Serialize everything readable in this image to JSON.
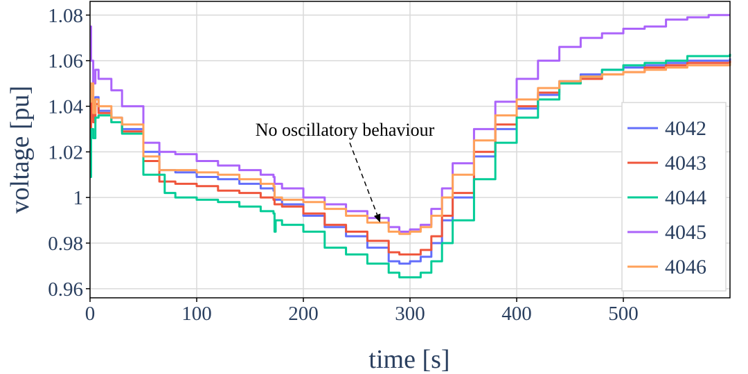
{
  "chart_data": {
    "type": "line",
    "title": "",
    "xlabel": "time [s]",
    "ylabel": "voltage [pu]",
    "xlim": [
      0,
      600
    ],
    "ylim": [
      0.956,
      1.086
    ],
    "x_ticks": [
      0,
      100,
      200,
      300,
      400,
      500
    ],
    "x_tick_labels": [
      "0",
      "100",
      "200",
      "300",
      "400",
      "500"
    ],
    "y_ticks": [
      0.96,
      0.98,
      1.0,
      1.02,
      1.04,
      1.06,
      1.08
    ],
    "y_tick_labels": [
      "0.96",
      "0.98",
      "1",
      "1.02",
      "1.04",
      "1.06",
      "1.08"
    ],
    "grid": true,
    "legend_position": "right",
    "annotation": {
      "text": "No oscillatory behaviour",
      "target": {
        "x": 272,
        "y": 0.989
      }
    },
    "series": [
      {
        "name": "4042",
        "color": "#636efa",
        "points": [
          [
            0,
            1.01
          ],
          [
            1,
            1.05
          ],
          [
            3,
            1.035
          ],
          [
            5,
            1.044
          ],
          [
            8,
            1.038
          ],
          [
            20,
            1.035
          ],
          [
            30,
            1.03
          ],
          [
            50,
            1.02
          ],
          [
            65,
            1.012
          ],
          [
            80,
            1.011
          ],
          [
            100,
            1.009
          ],
          [
            120,
            1.008
          ],
          [
            140,
            1.006
          ],
          [
            160,
            1.004
          ],
          [
            172,
            1.003
          ],
          [
            173,
            0.999
          ],
          [
            180,
            0.997
          ],
          [
            200,
            0.992
          ],
          [
            220,
            0.987
          ],
          [
            240,
            0.983
          ],
          [
            260,
            0.978
          ],
          [
            280,
            0.972
          ],
          [
            290,
            0.971
          ],
          [
            300,
            0.972
          ],
          [
            310,
            0.974
          ],
          [
            320,
            0.98
          ],
          [
            330,
            0.99
          ],
          [
            340,
            1.0
          ],
          [
            360,
            1.018
          ],
          [
            380,
            1.03
          ],
          [
            400,
            1.039
          ],
          [
            420,
            1.045
          ],
          [
            440,
            1.051
          ],
          [
            460,
            1.054
          ],
          [
            480,
            1.056
          ],
          [
            500,
            1.057
          ],
          [
            520,
            1.058
          ],
          [
            540,
            1.059
          ],
          [
            560,
            1.06
          ],
          [
            580,
            1.06
          ],
          [
            600,
            1.061
          ]
        ]
      },
      {
        "name": "4043",
        "color": "#ef553b",
        "points": [
          [
            0,
            1.02
          ],
          [
            1,
            1.043
          ],
          [
            3,
            1.033
          ],
          [
            5,
            1.041
          ],
          [
            8,
            1.037
          ],
          [
            20,
            1.033
          ],
          [
            30,
            1.029
          ],
          [
            50,
            1.016
          ],
          [
            65,
            1.007
          ],
          [
            80,
            1.006
          ],
          [
            100,
            1.005
          ],
          [
            120,
            1.003
          ],
          [
            140,
            1.002
          ],
          [
            160,
            1.0
          ],
          [
            172,
            0.999
          ],
          [
            173,
            0.997
          ],
          [
            180,
            0.996
          ],
          [
            200,
            0.993
          ],
          [
            220,
            0.988
          ],
          [
            240,
            0.985
          ],
          [
            260,
            0.981
          ],
          [
            280,
            0.976
          ],
          [
            290,
            0.975
          ],
          [
            300,
            0.975
          ],
          [
            310,
            0.977
          ],
          [
            320,
            0.983
          ],
          [
            330,
            0.992
          ],
          [
            340,
            1.002
          ],
          [
            360,
            1.02
          ],
          [
            380,
            1.032
          ],
          [
            400,
            1.04
          ],
          [
            420,
            1.046
          ],
          [
            440,
            1.05
          ],
          [
            460,
            1.052
          ],
          [
            480,
            1.054
          ],
          [
            500,
            1.055
          ],
          [
            520,
            1.057
          ],
          [
            540,
            1.058
          ],
          [
            560,
            1.059
          ],
          [
            580,
            1.059
          ],
          [
            600,
            1.06
          ]
        ]
      },
      {
        "name": "4044",
        "color": "#00cc96",
        "points": [
          [
            0,
            1.009
          ],
          [
            1,
            1.03
          ],
          [
            3,
            1.026
          ],
          [
            5,
            1.035
          ],
          [
            8,
            1.036
          ],
          [
            20,
            1.033
          ],
          [
            30,
            1.028
          ],
          [
            50,
            1.01
          ],
          [
            70,
            1.002
          ],
          [
            80,
            1.0
          ],
          [
            100,
            0.999
          ],
          [
            120,
            0.998
          ],
          [
            140,
            0.996
          ],
          [
            160,
            0.994
          ],
          [
            172,
            0.993
          ],
          [
            173,
            0.985
          ],
          [
            174,
            0.99
          ],
          [
            180,
            0.988
          ],
          [
            200,
            0.985
          ],
          [
            220,
            0.978
          ],
          [
            240,
            0.975
          ],
          [
            260,
            0.971
          ],
          [
            280,
            0.967
          ],
          [
            290,
            0.965
          ],
          [
            300,
            0.965
          ],
          [
            310,
            0.967
          ],
          [
            320,
            0.972
          ],
          [
            330,
            0.98
          ],
          [
            340,
            0.99
          ],
          [
            360,
            1.008
          ],
          [
            380,
            1.024
          ],
          [
            400,
            1.035
          ],
          [
            420,
            1.043
          ],
          [
            440,
            1.05
          ],
          [
            460,
            1.053
          ],
          [
            480,
            1.056
          ],
          [
            500,
            1.058
          ],
          [
            520,
            1.059
          ],
          [
            540,
            1.06
          ],
          [
            560,
            1.062
          ],
          [
            580,
            1.062
          ],
          [
            600,
            1.063
          ]
        ]
      },
      {
        "name": "4045",
        "color": "#ab63fa",
        "points": [
          [
            0,
            1.075
          ],
          [
            1,
            1.06
          ],
          [
            3,
            1.05
          ],
          [
            5,
            1.056
          ],
          [
            8,
            1.052
          ],
          [
            20,
            1.047
          ],
          [
            30,
            1.04
          ],
          [
            50,
            1.024
          ],
          [
            65,
            1.02
          ],
          [
            80,
            1.019
          ],
          [
            100,
            1.016
          ],
          [
            120,
            1.014
          ],
          [
            140,
            1.012
          ],
          [
            160,
            1.01
          ],
          [
            172,
            1.009
          ],
          [
            173,
            1.006
          ],
          [
            180,
            1.004
          ],
          [
            200,
            1.0
          ],
          [
            220,
            0.997
          ],
          [
            240,
            0.994
          ],
          [
            260,
            0.991
          ],
          [
            280,
            0.987
          ],
          [
            290,
            0.985
          ],
          [
            300,
            0.986
          ],
          [
            310,
            0.988
          ],
          [
            320,
            0.995
          ],
          [
            330,
            1.004
          ],
          [
            340,
            1.015
          ],
          [
            360,
            1.03
          ],
          [
            380,
            1.042
          ],
          [
            400,
            1.052
          ],
          [
            420,
            1.06
          ],
          [
            440,
            1.066
          ],
          [
            460,
            1.07
          ],
          [
            480,
            1.072
          ],
          [
            500,
            1.074
          ],
          [
            520,
            1.075
          ],
          [
            540,
            1.078
          ],
          [
            560,
            1.079
          ],
          [
            580,
            1.08
          ],
          [
            600,
            1.08
          ]
        ]
      },
      {
        "name": "4046",
        "color": "#ffa15a",
        "points": [
          [
            0,
            1.042
          ],
          [
            1,
            1.05
          ],
          [
            3,
            1.037
          ],
          [
            5,
            1.043
          ],
          [
            8,
            1.04
          ],
          [
            20,
            1.035
          ],
          [
            30,
            1.032
          ],
          [
            50,
            1.018
          ],
          [
            65,
            1.012
          ],
          [
            80,
            1.012
          ],
          [
            100,
            1.011
          ],
          [
            120,
            1.01
          ],
          [
            140,
            1.008
          ],
          [
            160,
            1.006
          ],
          [
            172,
            1.005
          ],
          [
            173,
            1.0
          ],
          [
            180,
            0.999
          ],
          [
            200,
            0.998
          ],
          [
            220,
            0.995
          ],
          [
            240,
            0.992
          ],
          [
            260,
            0.989
          ],
          [
            280,
            0.985
          ],
          [
            290,
            0.984
          ],
          [
            300,
            0.985
          ],
          [
            310,
            0.987
          ],
          [
            320,
            0.992
          ],
          [
            330,
            1.0
          ],
          [
            340,
            1.01
          ],
          [
            360,
            1.025
          ],
          [
            380,
            1.036
          ],
          [
            400,
            1.043
          ],
          [
            420,
            1.048
          ],
          [
            440,
            1.051
          ],
          [
            460,
            1.053
          ],
          [
            480,
            1.054
          ],
          [
            500,
            1.055
          ],
          [
            520,
            1.056
          ],
          [
            540,
            1.057
          ],
          [
            560,
            1.058
          ],
          [
            580,
            1.058
          ],
          [
            600,
            1.059
          ]
        ]
      }
    ]
  }
}
